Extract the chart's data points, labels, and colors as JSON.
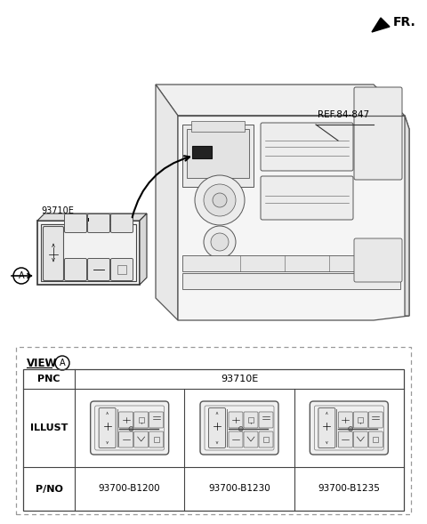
{
  "fr_label": "FR.",
  "ref_label": "REF.84-847",
  "part_label": "93710E",
  "view_label": "VIEW",
  "pnc_label": "PNC",
  "pnc_value": "93710E",
  "illust_label": "ILLUST",
  "pno_label": "P/NO",
  "part_numbers": [
    "93700-B1200",
    "93700-B1230",
    "93700-B1235"
  ],
  "bg_color": "#ffffff"
}
